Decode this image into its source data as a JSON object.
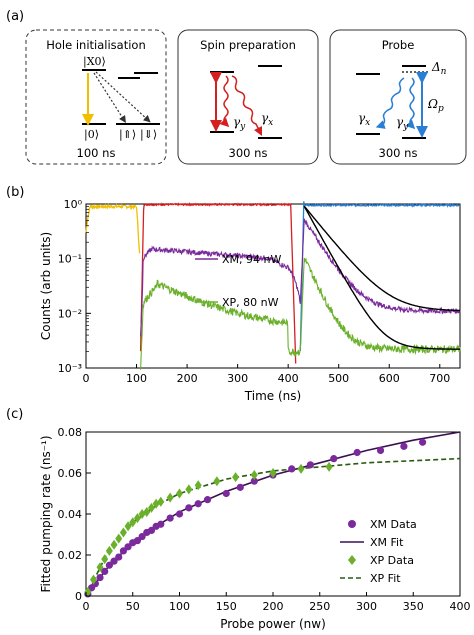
{
  "panel_labels": {
    "a": "(a)",
    "b": "(b)",
    "c": "(c)"
  },
  "schematic": {
    "box1": {
      "title": "Hole initialisation",
      "time": "100 ns",
      "level_x0": "|X0⟩",
      "level_0": "|0⟩",
      "level_up": "|⇑⟩",
      "level_down": "|⇓⟩"
    },
    "box2": {
      "title": "Spin preparation",
      "time": "300 ns",
      "gamma_y": "γ",
      "gamma_y_sub": "y",
      "gamma_x": "γ",
      "gamma_x_sub": "x"
    },
    "box3": {
      "title": "Probe",
      "time": "300 ns",
      "delta": "Δ",
      "delta_sub": "n",
      "omega": "Ω",
      "omega_sub": "p",
      "gamma_x": "γ",
      "gamma_x_sub": "x",
      "gamma_y": "γ",
      "gamma_y_sub": "y"
    }
  },
  "colors": {
    "yellow": "#f0c000",
    "red": "#d42020",
    "blue": "#2a7fd4",
    "purple": "#7a2a9a",
    "green": "#6ab02a",
    "fitxm": "#3a1050",
    "fitxp": "#2a5a10"
  },
  "chart_data": [
    {
      "type": "line",
      "xlabel": "Time (ns)",
      "ylabel": "Counts (arb units)",
      "xlim": [
        0,
        740
      ],
      "ylim": [
        0.001,
        1
      ],
      "yscale": "log",
      "xticks": [
        "0",
        "100",
        "200",
        "300",
        "400",
        "500",
        "600",
        "700"
      ],
      "yticks": [
        "10⁰",
        "10⁻¹",
        "10⁻²",
        "10⁻³"
      ],
      "annotations": [
        "XM, 94 nW",
        "XP, 80 nW"
      ],
      "series": [
        {
          "name": "XM, 94 nW",
          "x": [
            110,
            130,
            150,
            200,
            250,
            300,
            350,
            400,
            410,
            425,
            440,
            480,
            520,
            560,
            600,
            650,
            700,
            735
          ],
          "y": [
            0.004,
            0.1,
            0.15,
            0.14,
            0.13,
            0.12,
            0.1,
            0.07,
            0.07,
            0.015,
            0.5,
            0.15,
            0.05,
            0.025,
            0.015,
            0.012,
            0.011,
            0.011
          ]
        },
        {
          "name": "XP, 80 nW",
          "x": [
            110,
            130,
            150,
            200,
            250,
            300,
            350,
            400,
            410,
            425,
            440,
            480,
            520,
            560,
            600,
            650,
            700,
            735
          ],
          "y": [
            0.001,
            0.015,
            0.03,
            0.009,
            0.007,
            0.006,
            0.005,
            0.003,
            0.002,
            0.002,
            0.1,
            0.02,
            0.006,
            0.003,
            0.0025,
            0.0022,
            0.0022,
            0.0022
          ]
        }
      ]
    },
    {
      "type": "scatter",
      "xlabel": "Probe power (nw)",
      "ylabel": "Fitted pumping rate (ns⁻¹)",
      "xlim": [
        0,
        400
      ],
      "ylim": [
        0,
        0.08
      ],
      "xticks": [
        "0",
        "50",
        "100",
        "150",
        "200",
        "250",
        "300",
        "350",
        "400"
      ],
      "yticks": [
        "0",
        "0.02",
        "0.04",
        "0.06",
        "0.08"
      ],
      "legend_position": "bottom-right",
      "series": [
        {
          "name": "XM Data",
          "x": [
            2,
            6,
            10,
            15,
            20,
            25,
            30,
            35,
            40,
            45,
            50,
            55,
            60,
            65,
            70,
            75,
            80,
            90,
            100,
            110,
            120,
            130,
            150,
            165,
            180,
            200,
            220,
            240,
            265,
            290,
            315,
            340,
            360
          ],
          "y": [
            0.001,
            0.004,
            0.006,
            0.009,
            0.012,
            0.015,
            0.017,
            0.019,
            0.022,
            0.024,
            0.026,
            0.027,
            0.029,
            0.031,
            0.032,
            0.034,
            0.035,
            0.038,
            0.04,
            0.043,
            0.045,
            0.047,
            0.05,
            0.053,
            0.056,
            0.059,
            0.062,
            0.064,
            0.067,
            0.07,
            0.071,
            0.073,
            0.075
          ]
        },
        {
          "name": "XM Fit",
          "x": [
            0,
            25,
            50,
            75,
            100,
            150,
            200,
            250,
            300,
            350,
            400
          ],
          "y": [
            0,
            0.015,
            0.026,
            0.034,
            0.041,
            0.051,
            0.059,
            0.065,
            0.071,
            0.076,
            0.08
          ]
        },
        {
          "name": "XP Data",
          "x": [
            2,
            8,
            15,
            20,
            25,
            30,
            35,
            40,
            45,
            50,
            55,
            60,
            65,
            70,
            75,
            80,
            90,
            100,
            110,
            120,
            140,
            160,
            180,
            200,
            230,
            260
          ],
          "y": [
            0.002,
            0.008,
            0.014,
            0.018,
            0.022,
            0.025,
            0.028,
            0.031,
            0.034,
            0.036,
            0.038,
            0.04,
            0.041,
            0.043,
            0.045,
            0.046,
            0.048,
            0.05,
            0.052,
            0.054,
            0.056,
            0.058,
            0.059,
            0.06,
            0.062,
            0.063
          ]
        },
        {
          "name": "XP Fit",
          "x": [
            0,
            25,
            50,
            75,
            100,
            150,
            200,
            250,
            300,
            350,
            400
          ],
          "y": [
            0,
            0.023,
            0.036,
            0.044,
            0.05,
            0.057,
            0.061,
            0.063,
            0.065,
            0.066,
            0.067
          ]
        }
      ]
    }
  ]
}
